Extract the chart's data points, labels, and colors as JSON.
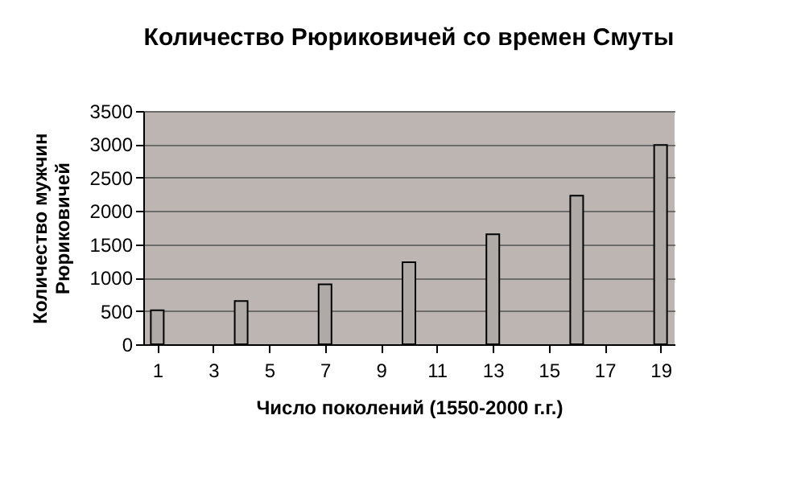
{
  "chart_data": {
    "type": "bar",
    "title": "Количество Рюриковичей со времен Смуты",
    "xlabel": "Число поколений (1550-2000 г.г.)",
    "ylabel": "Количество мужчин Рюриковичей",
    "x": [
      1,
      4,
      7,
      10,
      13,
      16,
      19
    ],
    "values": [
      510,
      650,
      900,
      1230,
      1650,
      2230,
      2990
    ],
    "color": "#b0aaa6",
    "xlim": [
      0.5,
      19.5
    ],
    "xticks": [
      1,
      3,
      5,
      7,
      9,
      11,
      13,
      15,
      17,
      19
    ],
    "ylim": [
      0,
      3500
    ],
    "yticks": [
      0,
      500,
      1000,
      1500,
      2000,
      2500,
      3000,
      3500
    ],
    "grid": "y"
  }
}
